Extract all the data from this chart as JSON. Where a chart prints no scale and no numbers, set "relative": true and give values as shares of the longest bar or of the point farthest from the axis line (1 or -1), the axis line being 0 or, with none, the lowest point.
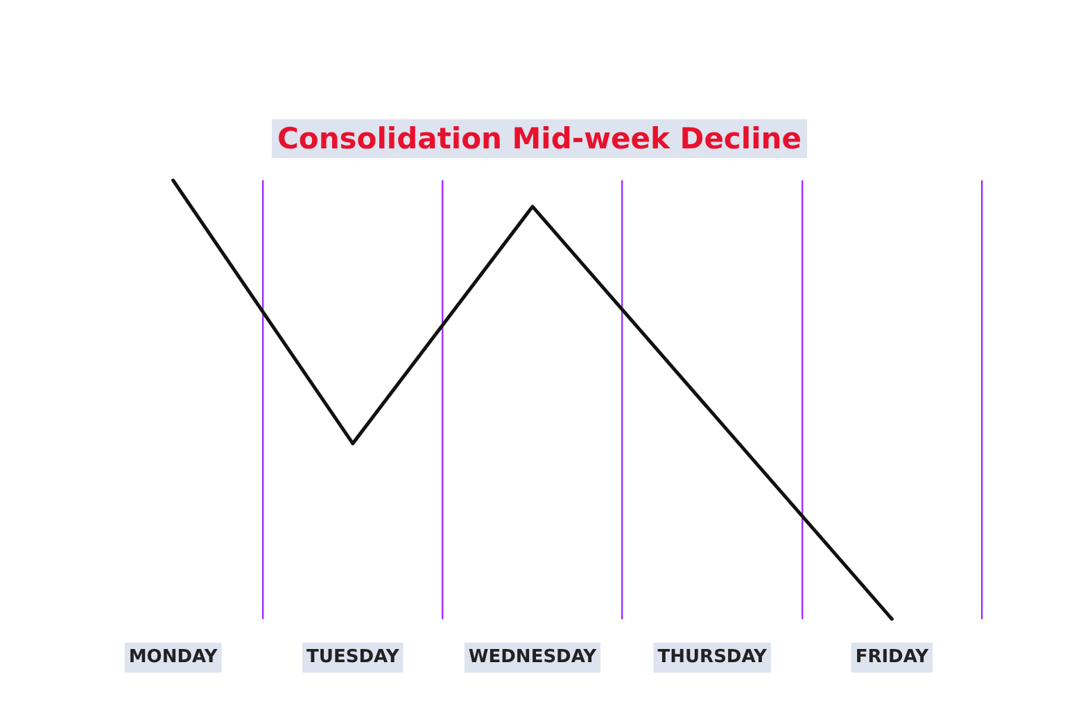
{
  "chart_data": {
    "type": "line",
    "title": "Consolidation Mid-week Decline",
    "categories": [
      "MONDAY",
      "TUESDAY",
      "WEDNESDAY",
      "THURSDAY",
      "FRIDAY"
    ],
    "values": [
      1,
      0.4,
      0.94,
      null,
      0
    ],
    "color": "#111111",
    "relative": true,
    "grid": "x",
    "marker": "none",
    "line_style": "solid",
    "legend": false
  }
}
